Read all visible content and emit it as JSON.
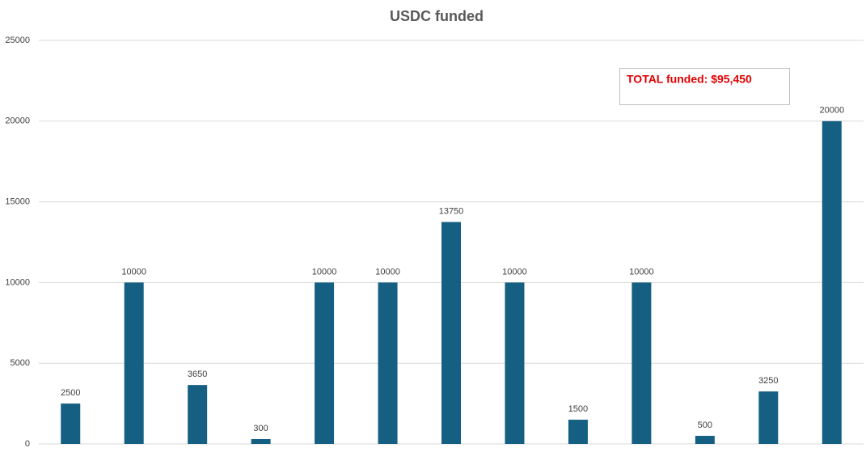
{
  "chart_data": {
    "type": "bar",
    "title": "USDC funded",
    "categories": [
      null,
      null,
      null,
      null,
      null,
      null,
      null,
      null,
      null,
      null,
      null,
      null,
      null
    ],
    "values": [
      2500,
      10000,
      3650,
      300,
      10000,
      10000,
      13750,
      10000,
      1500,
      10000,
      500,
      3250,
      20000
    ],
    "color": "#145f82",
    "ylim": [
      0,
      25000
    ],
    "yticks": [
      0,
      5000,
      10000,
      15000,
      20000,
      25000
    ],
    "grid": true,
    "annotation": "TOTAL funded: $95,450"
  }
}
